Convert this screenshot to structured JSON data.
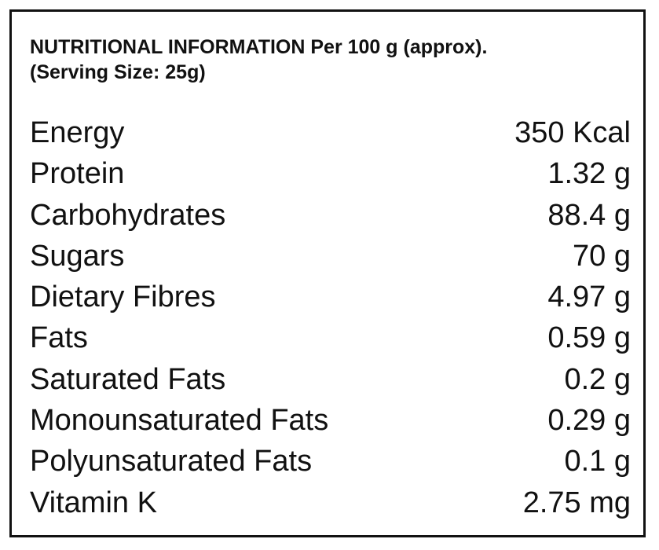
{
  "header": {
    "title": "NUTRITIONAL INFORMATION Per 100 g (approx).",
    "subtitle": "(Serving Size: 25g)"
  },
  "table": {
    "rows": [
      [
        "Energy",
        "350 Kcal"
      ],
      [
        "Protein",
        "1.32 g"
      ],
      [
        "Carbohydrates",
        "88.4 g"
      ],
      [
        "Sugars",
        "70 g"
      ],
      [
        "Dietary Fibres",
        "4.97 g"
      ],
      [
        "Fats",
        "0.59 g"
      ],
      [
        "Saturated Fats",
        "0.2 g"
      ],
      [
        "Monounsaturated Fats",
        "0.29 g"
      ],
      [
        "Polyunsaturated Fats",
        "0.1 g"
      ],
      [
        "Vitamin K",
        "2.75 mg"
      ]
    ]
  }
}
